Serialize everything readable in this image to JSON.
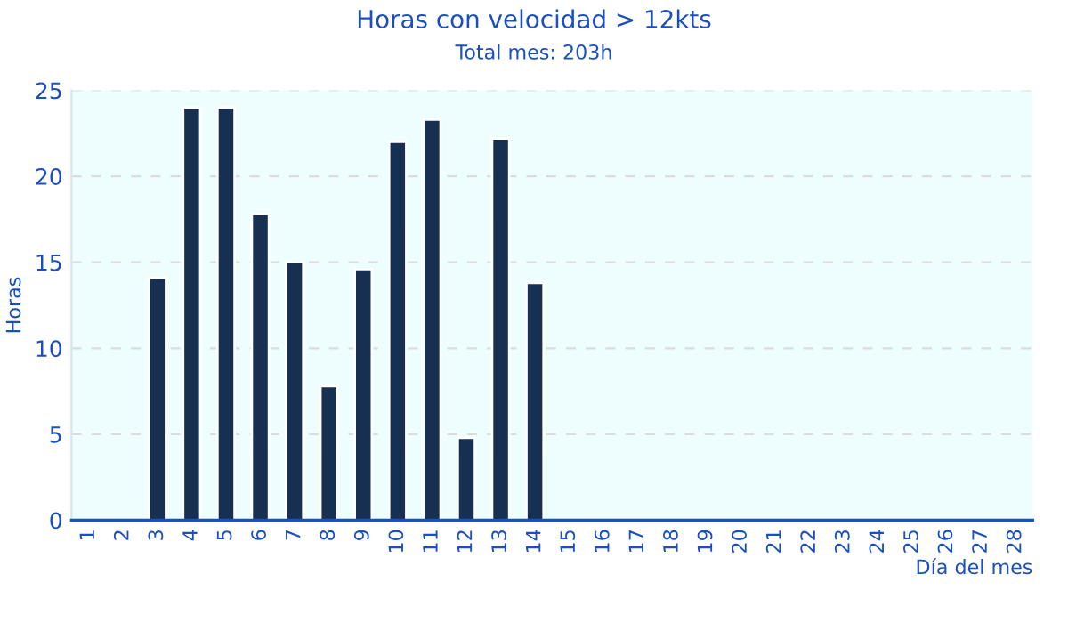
{
  "chart_data": {
    "type": "bar",
    "title": "Horas con velocidad > 12kts",
    "subtitle": "Total mes: 203h",
    "xlabel": "Día del mes",
    "ylabel": "Horas",
    "categories": [
      "1",
      "2",
      "3",
      "4",
      "5",
      "6",
      "7",
      "8",
      "9",
      "10",
      "11",
      "12",
      "13",
      "14",
      "15",
      "16",
      "17",
      "18",
      "19",
      "20",
      "21",
      "22",
      "23",
      "24",
      "25",
      "26",
      "27",
      "28"
    ],
    "values": [
      null,
      null,
      14.1,
      24.0,
      24.0,
      17.8,
      15.0,
      7.8,
      14.6,
      22.0,
      23.3,
      4.8,
      22.2,
      13.8,
      null,
      null,
      null,
      null,
      null,
      null,
      null,
      null,
      null,
      null,
      null,
      null,
      null,
      null
    ],
    "color": "#172f51",
    "ylim": [
      0,
      25
    ],
    "yticks": [
      0,
      5,
      10,
      15,
      20,
      25
    ],
    "grid": "y",
    "legend": false
  }
}
